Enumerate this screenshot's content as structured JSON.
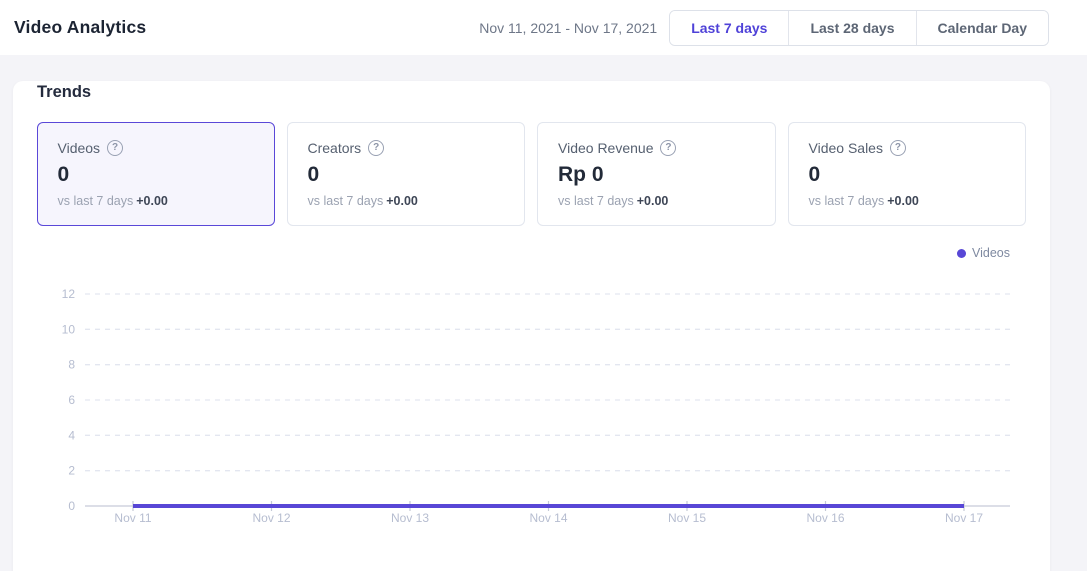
{
  "header": {
    "title": "Video Analytics",
    "date_range": "Nov 11, 2021 - Nov 17, 2021",
    "range_buttons": [
      {
        "label": "Last 7 days",
        "active": true
      },
      {
        "label": "Last 28 days",
        "active": false
      },
      {
        "label": "Calendar Day",
        "active": false
      }
    ]
  },
  "trends": {
    "heading": "Trends",
    "help_icon_glyph": "?",
    "cards": [
      {
        "label": "Videos",
        "value": "0",
        "comparison_prefix": "vs last 7 days",
        "comparison_delta": "+0.00",
        "selected": true
      },
      {
        "label": "Creators",
        "value": "0",
        "comparison_prefix": "vs last 7 days",
        "comparison_delta": "+0.00",
        "selected": false
      },
      {
        "label": "Video Revenue",
        "value": "Rp 0",
        "comparison_prefix": "vs last 7 days",
        "comparison_delta": "+0.00",
        "selected": false
      },
      {
        "label": "Video Sales",
        "value": "0",
        "comparison_prefix": "vs last 7 days",
        "comparison_delta": "+0.00",
        "selected": false
      }
    ]
  },
  "chart_data": {
    "type": "line",
    "title": "",
    "x": [
      "Nov 11",
      "Nov 12",
      "Nov 13",
      "Nov 14",
      "Nov 15",
      "Nov 16",
      "Nov 17"
    ],
    "series": [
      {
        "name": "Videos",
        "values": [
          0,
          0,
          0,
          0,
          0,
          0,
          0
        ],
        "color": "#5847d6"
      }
    ],
    "ylim": [
      0,
      12
    ],
    "yticks": [
      0,
      2,
      4,
      6,
      8,
      10,
      12
    ],
    "xlabel": "",
    "ylabel": "",
    "grid": "horizontal-dashed",
    "legend_position": "top-right"
  },
  "colors": {
    "accent": "#4f42d8",
    "series_line": "#5847d6",
    "selected_card_bg": "#f6f5fd",
    "selected_card_border": "#5a48d8",
    "page_bg": "#f4f4f8",
    "panel_bg": "#ffffff",
    "grid_line": "#e3e6f0",
    "axis_line": "#d0d4df",
    "tick_mark": "#c4c9d6",
    "axis_label": "#b6bdd0"
  }
}
